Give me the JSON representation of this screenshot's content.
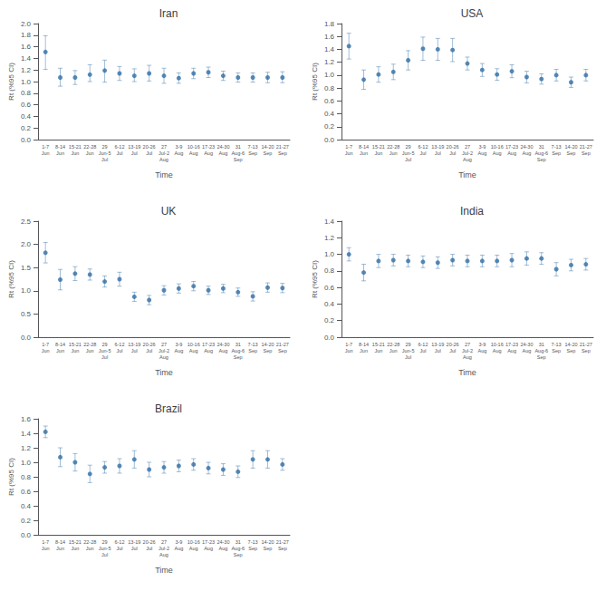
{
  "chart_data": [
    {
      "type": "scatter",
      "title": "Iran",
      "xlabel": "Time",
      "ylabel": "Rt (%95 CI)",
      "categories": [
        "1-7\nJun",
        "8-14\nJun",
        "15-21\nJun",
        "22-28\nJun",
        "29\nJun-5\nJul",
        "6-12\nJul",
        "13-19\nJul",
        "20-26\nJul",
        "27\nJul-2\nAug",
        "3-9\nAug",
        "10-16\nAug",
        "17-23\nAug",
        "24-30\nAug",
        "31\nAug-6\nSep",
        "7-13\nSep",
        "14-20\nSep",
        "21-27\nSep"
      ],
      "values": [
        1.51,
        1.07,
        1.07,
        1.12,
        1.19,
        1.14,
        1.1,
        1.14,
        1.1,
        1.06,
        1.14,
        1.16,
        1.1,
        1.07,
        1.07,
        1.07,
        1.07
      ],
      "yerr_lo": [
        0.3,
        0.15,
        0.12,
        0.12,
        0.2,
        0.12,
        0.1,
        0.13,
        0.13,
        0.09,
        0.09,
        0.09,
        0.08,
        0.08,
        0.08,
        0.09,
        0.09
      ],
      "yerr_hi": [
        0.28,
        0.16,
        0.12,
        0.17,
        0.18,
        0.12,
        0.12,
        0.14,
        0.13,
        0.09,
        0.09,
        0.09,
        0.08,
        0.08,
        0.08,
        0.09,
        0.1
      ],
      "ylim": [
        0,
        2
      ],
      "yticks": [
        {
          "value": 0,
          "label": "0.0"
        },
        0.2,
        0.4,
        0.6,
        0.8,
        {
          "value": 1.0,
          "label": "1.0"
        },
        1.2,
        1.4,
        1.6,
        1.8,
        {
          "value": 2.0,
          "label": "2.0"
        }
      ],
      "color": "#2e6da4",
      "marker": "circle",
      "grid": false
    },
    {
      "type": "scatter",
      "title": "USA",
      "xlabel": "Time",
      "ylabel": "Rt (%95 CI)",
      "categories": [
        "1-7\nJun",
        "8-14\nJun",
        "15-21\nJun",
        "22-28\nJun",
        "29\nJun-5\nJul",
        "6-12\nJul",
        "13-19\nJul",
        "20-26\nJul",
        "27\nJul-2\nAug",
        "3-9\nAug",
        "10-16\nAug",
        "17-23\nAug",
        "24-30\nAug",
        "31\nAug-6\nSep",
        "7-13\nSep",
        "14-20\nSep",
        "21-27\nSep"
      ],
      "values": [
        1.45,
        0.93,
        1.01,
        1.05,
        1.23,
        1.41,
        1.4,
        1.39,
        1.18,
        1.08,
        1.01,
        1.06,
        0.97,
        0.94,
        1.0,
        0.89,
        1.0
      ],
      "yerr_lo": [
        0.2,
        0.15,
        0.12,
        0.12,
        0.15,
        0.18,
        0.17,
        0.18,
        0.1,
        0.1,
        0.09,
        0.1,
        0.09,
        0.08,
        0.09,
        0.08,
        0.09
      ],
      "yerr_hi": [
        0.2,
        0.15,
        0.12,
        0.12,
        0.15,
        0.18,
        0.17,
        0.18,
        0.1,
        0.1,
        0.09,
        0.1,
        0.09,
        0.08,
        0.09,
        0.08,
        0.09
      ],
      "ylim": [
        0,
        1.8
      ],
      "yticks": [
        {
          "value": 0,
          "label": "0.0"
        },
        0.2,
        0.4,
        0.6,
        0.8,
        {
          "value": 1.0,
          "label": "1.0"
        },
        1.2,
        1.4,
        1.6,
        1.8
      ],
      "color": "#2e6da4",
      "marker": "circle",
      "grid": false
    },
    {
      "type": "scatter",
      "title": "UK",
      "xlabel": "Time",
      "ylabel": "Rt (%95 CI)",
      "categories": [
        "1-7\nJun",
        "8-14\nJun",
        "15-21\nJun",
        "22-28\nJun",
        "29\nJun-5\nJul",
        "6-12\nJul",
        "13-19\nJul",
        "20-26\nJul",
        "27\nJul-2\nAug",
        "3-9\nAug",
        "10-16\nAug",
        "17-23\nAug",
        "24-30\nAug",
        "31\nAug-6\nSep",
        "7-13\nSep",
        "14-20\nSep",
        "21-27\nSep"
      ],
      "values": [
        1.82,
        1.24,
        1.37,
        1.35,
        1.2,
        1.25,
        0.87,
        0.8,
        1.01,
        1.05,
        1.1,
        1.01,
        1.05,
        0.97,
        0.88,
        1.07,
        1.06
      ],
      "yerr_lo": [
        0.22,
        0.22,
        0.15,
        0.12,
        0.12,
        0.15,
        0.1,
        0.1,
        0.1,
        0.1,
        0.1,
        0.09,
        0.09,
        0.09,
        0.1,
        0.1,
        0.1
      ],
      "yerr_hi": [
        0.22,
        0.22,
        0.15,
        0.12,
        0.12,
        0.15,
        0.1,
        0.1,
        0.1,
        0.1,
        0.1,
        0.09,
        0.09,
        0.09,
        0.1,
        0.1,
        0.1
      ],
      "ylim": [
        0,
        2.5
      ],
      "yticks": [
        {
          "value": 0,
          "label": "0.0"
        },
        0.5,
        {
          "value": 1.0,
          "label": "1.0"
        },
        1.5,
        {
          "value": 2.0,
          "label": "2.0"
        },
        2.5
      ],
      "color": "#2e6da4",
      "marker": "circle",
      "grid": false
    },
    {
      "type": "scatter",
      "title": "India",
      "xlabel": "Time",
      "ylabel": "Rt (%95 CI)",
      "categories": [
        "1-7\nJun",
        "8-14\nJun",
        "15-21\nJun",
        "22-28\nJun",
        "29\nJun-5\nJul",
        "6-12\nJul",
        "13-19\nJul",
        "20-26\nJul",
        "27\nJul-2\nAug",
        "3-9\nAug",
        "10-16\nAug",
        "17-23\nAug",
        "24-30\nAug",
        "31\nAug-6\nSep",
        "7-13\nSep",
        "14-20\nSep",
        "21-27\nSep"
      ],
      "values": [
        1.0,
        0.78,
        0.92,
        0.93,
        0.92,
        0.91,
        0.9,
        0.93,
        0.92,
        0.92,
        0.92,
        0.93,
        0.95,
        0.95,
        0.82,
        0.87,
        0.88
      ],
      "yerr_lo": [
        0.08,
        0.1,
        0.08,
        0.07,
        0.07,
        0.07,
        0.07,
        0.07,
        0.07,
        0.07,
        0.07,
        0.08,
        0.08,
        0.07,
        0.08,
        0.07,
        0.07
      ],
      "yerr_hi": [
        0.08,
        0.1,
        0.08,
        0.07,
        0.07,
        0.07,
        0.07,
        0.07,
        0.07,
        0.07,
        0.07,
        0.08,
        0.08,
        0.07,
        0.08,
        0.07,
        0.07
      ],
      "ylim": [
        0,
        1.4
      ],
      "yticks": [
        {
          "value": 0,
          "label": "0.0"
        },
        0.2,
        0.4,
        0.6,
        0.8,
        {
          "value": 1.0,
          "label": "1.0"
        },
        1.2,
        1.4
      ],
      "color": "#2e6da4",
      "marker": "circle",
      "grid": false
    },
    {
      "type": "scatter",
      "title": "Brazil",
      "xlabel": "Time",
      "ylabel": "Rt (%95 CI)",
      "categories": [
        "1-7\nJun",
        "8-14\nJun",
        "15-21\nJun",
        "22-28\nJun",
        "29\nJun-5\nJul",
        "6-12\nJul",
        "13-19\nJul",
        "20-26\nJul",
        "27\nJul-2\nAug",
        "3-9\nAug",
        "10-16\nAug",
        "17-23\nAug",
        "24-30\nAug",
        "31\nAug-6\nSep",
        "7-13\nSep",
        "14-20\nSep",
        "21-27\nSep"
      ],
      "values": [
        1.42,
        1.07,
        1.0,
        0.84,
        0.93,
        0.95,
        1.04,
        0.9,
        0.93,
        0.95,
        0.97,
        0.92,
        0.9,
        0.87,
        1.04,
        1.04,
        0.97
      ],
      "yerr_lo": [
        0.08,
        0.13,
        0.12,
        0.12,
        0.08,
        0.1,
        0.12,
        0.1,
        0.08,
        0.08,
        0.08,
        0.08,
        0.08,
        0.08,
        0.12,
        0.12,
        0.08
      ],
      "yerr_hi": [
        0.08,
        0.13,
        0.12,
        0.12,
        0.08,
        0.1,
        0.12,
        0.1,
        0.08,
        0.08,
        0.08,
        0.08,
        0.08,
        0.08,
        0.12,
        0.12,
        0.08
      ],
      "ylim": [
        0,
        1.6
      ],
      "yticks": [
        {
          "value": 0,
          "label": "0.0"
        },
        0.2,
        0.4,
        0.6,
        0.8,
        {
          "value": 1.0,
          "label": "1.0"
        },
        1.2,
        1.4,
        1.6
      ],
      "color": "#2e6da4",
      "marker": "circle",
      "grid": false
    }
  ]
}
